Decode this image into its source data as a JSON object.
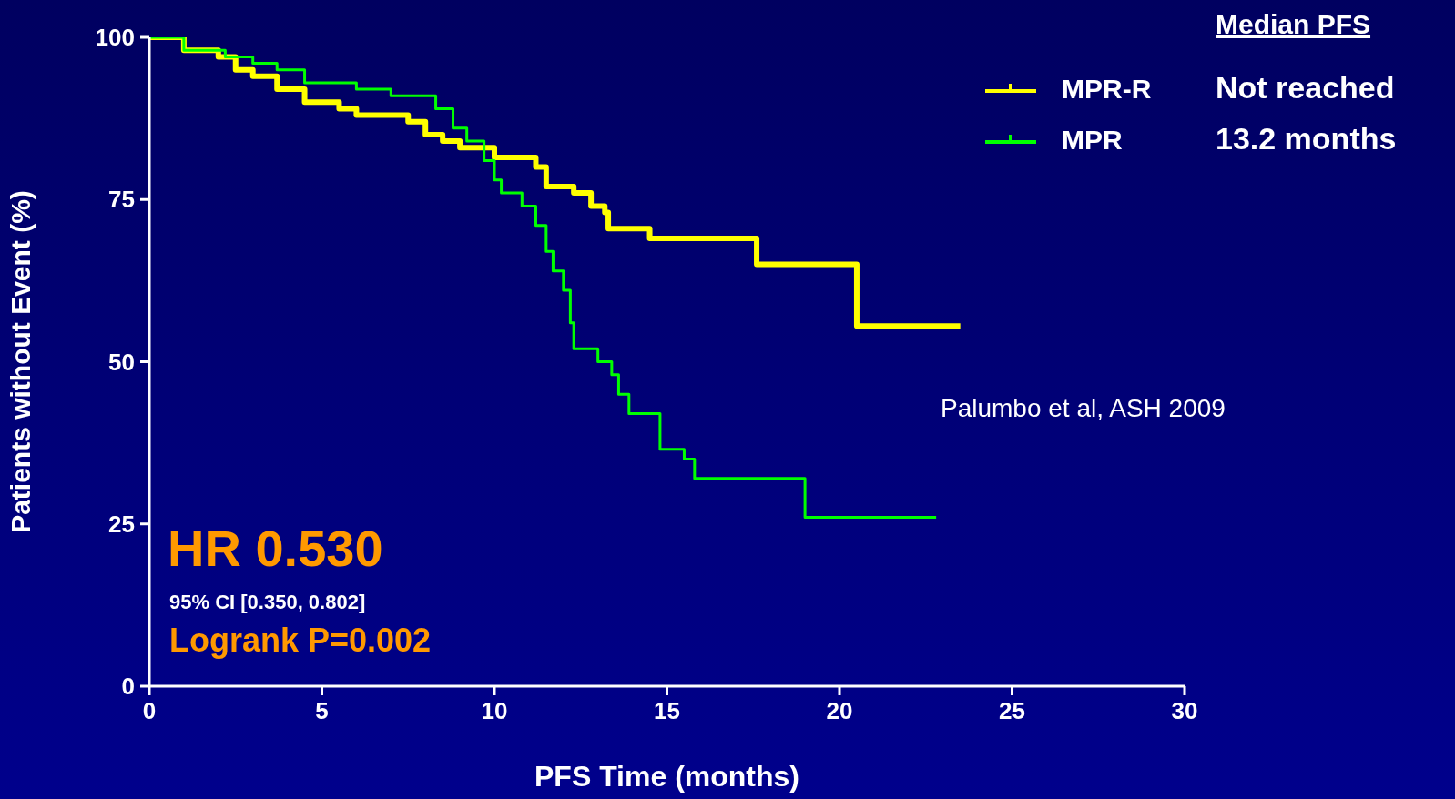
{
  "chart_data": {
    "type": "step",
    "xlabel": "PFS Time (months)",
    "ylabel": "Patients without Event (%)",
    "legend_title": "Median PFS",
    "legend": "top right",
    "grid": false,
    "xlim": [
      0,
      30
    ],
    "xticks": [
      0,
      5,
      10,
      15,
      20,
      25,
      30
    ],
    "ylim": [
      0,
      100
    ],
    "yticks": [
      0,
      25,
      50,
      75,
      100
    ],
    "series": [
      {
        "name": "MPR-R",
        "color": "#ffff00",
        "x": [
          0,
          1,
          2,
          2.5,
          3,
          3.7,
          4.5,
          5.5,
          6,
          7.5,
          8,
          8.5,
          9,
          10,
          11.2,
          11.5,
          12.3,
          12.8,
          13.2,
          13.3,
          14.5,
          17.6,
          20.5,
          23.5
        ],
        "values": [
          100,
          98,
          97,
          95,
          94,
          92,
          90,
          89,
          88,
          87,
          85,
          84,
          83,
          81.5,
          80,
          77,
          76,
          74,
          73,
          70.5,
          69,
          65,
          55.5,
          55.5
        ]
      },
      {
        "name": "MPR",
        "color": "#00ff00",
        "x": [
          0,
          1,
          2.2,
          3,
          3.7,
          4.5,
          6,
          7,
          8.3,
          8.8,
          9.2,
          9.7,
          10,
          10.2,
          10.8,
          11.2,
          11.5,
          11.7,
          12,
          12.2,
          12.3,
          13,
          13.4,
          13.6,
          13.9,
          14.8,
          15.5,
          15.8,
          19,
          22.8
        ],
        "values": [
          100,
          98,
          97,
          96,
          95,
          93,
          92,
          91,
          89,
          86,
          84,
          81,
          78,
          76,
          74,
          71,
          67,
          64,
          61,
          56,
          52,
          50,
          48,
          45,
          42,
          36.5,
          35,
          32,
          26,
          26
        ]
      }
    ],
    "annotations": [
      "Not reached",
      "13.2 months",
      "Palumbo et al, ASH 2009",
      "HR 0.530",
      "95% CI [0.350, 0.802]",
      "Logrank P=0.002"
    ]
  }
}
